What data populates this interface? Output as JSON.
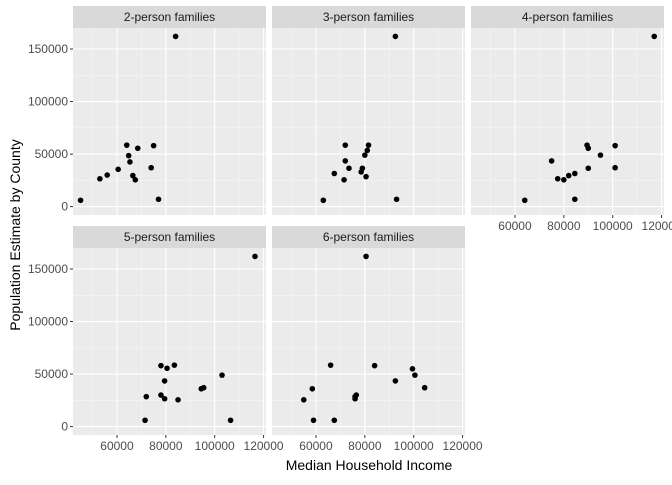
{
  "chart_data": {
    "type": "scatter",
    "xlabel": "Median Household Income",
    "ylabel": "Population Estimate by County",
    "x_ticks": [
      60000,
      80000,
      100000,
      120000
    ],
    "x_tick_labels": [
      "60000",
      "80000",
      "100000",
      "120000"
    ],
    "y_ticks": [
      0,
      50000,
      100000,
      150000
    ],
    "y_tick_labels": [
      "0",
      "50000",
      "100000",
      "150000"
    ],
    "xlim": [
      42000,
      121000
    ],
    "ylim": [
      -8000,
      170000
    ],
    "grid": true,
    "panels": [
      {
        "title": "2-person families",
        "points": [
          {
            "x": 45100,
            "y": 6000
          },
          {
            "x": 53000,
            "y": 26500
          },
          {
            "x": 56000,
            "y": 30000
          },
          {
            "x": 60500,
            "y": 35500
          },
          {
            "x": 64000,
            "y": 58500
          },
          {
            "x": 64800,
            "y": 48500
          },
          {
            "x": 65300,
            "y": 42500
          },
          {
            "x": 66500,
            "y": 29500
          },
          {
            "x": 67500,
            "y": 25500
          },
          {
            "x": 68500,
            "y": 55500
          },
          {
            "x": 74000,
            "y": 37000
          },
          {
            "x": 75000,
            "y": 58000
          },
          {
            "x": 77000,
            "y": 7000
          },
          {
            "x": 84000,
            "y": 162000
          }
        ]
      },
      {
        "title": "3-person families",
        "points": [
          {
            "x": 63000,
            "y": 6000
          },
          {
            "x": 67500,
            "y": 31500
          },
          {
            "x": 71500,
            "y": 25500
          },
          {
            "x": 72000,
            "y": 58500
          },
          {
            "x": 72000,
            "y": 43500
          },
          {
            "x": 73500,
            "y": 36500
          },
          {
            "x": 78500,
            "y": 33000
          },
          {
            "x": 79000,
            "y": 36500
          },
          {
            "x": 80000,
            "y": 49000
          },
          {
            "x": 80500,
            "y": 28500
          },
          {
            "x": 81000,
            "y": 53500
          },
          {
            "x": 81500,
            "y": 58500
          },
          {
            "x": 92500,
            "y": 162000
          },
          {
            "x": 93000,
            "y": 7000
          }
        ]
      },
      {
        "title": "4-person families",
        "points": [
          {
            "x": 64000,
            "y": 6000
          },
          {
            "x": 75000,
            "y": 43500
          },
          {
            "x": 77500,
            "y": 26500
          },
          {
            "x": 80000,
            "y": 25500
          },
          {
            "x": 82000,
            "y": 29500
          },
          {
            "x": 84500,
            "y": 31500
          },
          {
            "x": 84500,
            "y": 7000
          },
          {
            "x": 89500,
            "y": 58500
          },
          {
            "x": 90000,
            "y": 36500
          },
          {
            "x": 90000,
            "y": 55500
          },
          {
            "x": 95000,
            "y": 49000
          },
          {
            "x": 101000,
            "y": 58000
          },
          {
            "x": 101000,
            "y": 37000
          },
          {
            "x": 117000,
            "y": 162000
          }
        ]
      },
      {
        "title": "5-person families",
        "points": [
          {
            "x": 71500,
            "y": 6000
          },
          {
            "x": 72000,
            "y": 28500
          },
          {
            "x": 78000,
            "y": 58000
          },
          {
            "x": 78000,
            "y": 30000
          },
          {
            "x": 79500,
            "y": 26500
          },
          {
            "x": 79500,
            "y": 43500
          },
          {
            "x": 80500,
            "y": 55500
          },
          {
            "x": 83500,
            "y": 58500
          },
          {
            "x": 85000,
            "y": 25500
          },
          {
            "x": 94500,
            "y": 36000
          },
          {
            "x": 95500,
            "y": 37000
          },
          {
            "x": 103000,
            "y": 49000
          },
          {
            "x": 106500,
            "y": 6000
          },
          {
            "x": 116500,
            "y": 162000
          }
        ]
      },
      {
        "title": "6-person families",
        "points": [
          {
            "x": 55000,
            "y": 25500
          },
          {
            "x": 58500,
            "y": 36000
          },
          {
            "x": 59000,
            "y": 6000
          },
          {
            "x": 66000,
            "y": 58500
          },
          {
            "x": 67500,
            "y": 6000
          },
          {
            "x": 76000,
            "y": 26500
          },
          {
            "x": 76000,
            "y": 28500
          },
          {
            "x": 76500,
            "y": 30000
          },
          {
            "x": 80500,
            "y": 162000
          },
          {
            "x": 84000,
            "y": 58000
          },
          {
            "x": 92500,
            "y": 43500
          },
          {
            "x": 99500,
            "y": 55000
          },
          {
            "x": 100500,
            "y": 49000
          },
          {
            "x": 104500,
            "y": 37000
          }
        ]
      }
    ]
  }
}
